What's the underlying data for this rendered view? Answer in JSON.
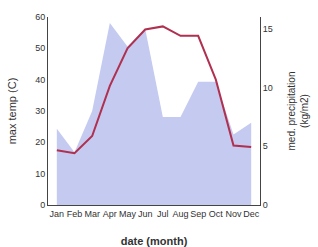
{
  "chart_data": {
    "type": "line",
    "xlabel": "date (month)",
    "ylabel": "max temp (C)",
    "y2label": "med. precipitation\n(kg/m2)",
    "categories": [
      "Jan",
      "Feb",
      "Mar",
      "Apr",
      "May",
      "Jun",
      "Jul",
      "Aug",
      "Sep",
      "Oct",
      "Nov",
      "Dec"
    ],
    "series": [
      {
        "type": "area",
        "axis": "y2",
        "color": "#c5caf0",
        "values": [
          6.5,
          4.5,
          8.0,
          15.5,
          13.5,
          15.0,
          7.5,
          7.5,
          10.5,
          10.5,
          6.0,
          7.0
        ]
      },
      {
        "type": "line",
        "color": "#b03050",
        "values": [
          17.5,
          16.5,
          22,
          38,
          50,
          56,
          57,
          54,
          54,
          40,
          19,
          18.5
        ]
      }
    ],
    "ylim": [
      0,
      60
    ],
    "yticks": [
      0,
      10,
      20,
      30,
      40,
      50,
      60
    ],
    "y2lim": [
      0,
      16
    ],
    "y2ticks": [
      0,
      5,
      10,
      15
    ],
    "grid": false
  }
}
